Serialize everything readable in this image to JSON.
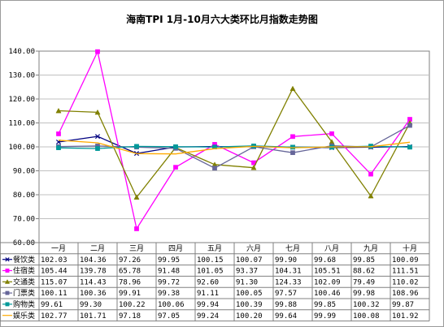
{
  "chart_data": {
    "type": "line",
    "title": "海南TPI 1月-10月六大类环比月指数走势图",
    "categories": [
      "一月",
      "二月",
      "三月",
      "四月",
      "五月",
      "六月",
      "七月",
      "八月",
      "九月",
      "十月"
    ],
    "ylim": [
      60,
      140
    ],
    "yticks": [
      "60.00",
      "70.00",
      "80.00",
      "90.00",
      "100.00",
      "110.00",
      "120.00",
      "130.00",
      "140.00"
    ],
    "grid": true,
    "legend": "data-table-bottom",
    "series": [
      {
        "name": "餐饮类",
        "color": "#000080",
        "marker": "cross",
        "values": [
          102.03,
          104.36,
          97.26,
          99.95,
          100.15,
          100.07,
          99.9,
          99.68,
          99.85,
          100.09
        ],
        "labels": [
          "102.03",
          "104.36",
          "97.26",
          "99.95",
          "100.15",
          "100.07",
          "99.90",
          "99.68",
          "99.85",
          "100.09"
        ]
      },
      {
        "name": "住宿类",
        "color": "#ff00ff",
        "marker": "square",
        "values": [
          105.44,
          139.78,
          65.78,
          91.48,
          101.05,
          93.37,
          104.31,
          105.51,
          88.62,
          111.51
        ],
        "labels": [
          "105.44",
          "139.78",
          "65.78",
          "91.48",
          "101.05",
          "93.37",
          "104.31",
          "105.51",
          "88.62",
          "111.51"
        ]
      },
      {
        "name": "交通类",
        "color": "#808000",
        "marker": "triangle",
        "values": [
          115.07,
          114.43,
          78.96,
          99.72,
          92.6,
          91.3,
          124.33,
          102.09,
          79.49,
          110.02
        ],
        "labels": [
          "115.07",
          "114.43",
          "78.96",
          "99.72",
          "92.60",
          "91.30",
          "124.33",
          "102.09",
          "79.49",
          "110.02"
        ]
      },
      {
        "name": "门票类",
        "color": "#666699",
        "marker": "square",
        "values": [
          100.11,
          100.36,
          99.91,
          99.38,
          91.11,
          100.05,
          97.57,
          100.46,
          99.98,
          108.96
        ],
        "labels": [
          "100.11",
          "100.36",
          "99.91",
          "99.38",
          "91.11",
          "100.05",
          "97.57",
          "100.46",
          "99.98",
          "108.96"
        ]
      },
      {
        "name": "购物类",
        "color": "#009999",
        "marker": "square",
        "values": [
          99.61,
          99.3,
          100.22,
          100.06,
          99.94,
          100.39,
          99.88,
          99.85,
          100.32,
          99.87
        ],
        "labels": [
          "99.61",
          "99.30",
          "100.22",
          "100.06",
          "99.94",
          "100.39",
          "99.88",
          "99.85",
          "100.32",
          "99.87"
        ]
      },
      {
        "name": "娱乐类",
        "color": "#ffaa00",
        "marker": "none",
        "values": [
          102.77,
          101.71,
          97.18,
          97.05,
          99.24,
          100.2,
          99.64,
          99.99,
          100.08,
          101.92
        ],
        "labels": [
          "102.77",
          "101.71",
          "97.18",
          "97.05",
          "99.24",
          "100.20",
          "99.64",
          "99.99",
          "100.08",
          "101.92"
        ]
      }
    ]
  }
}
